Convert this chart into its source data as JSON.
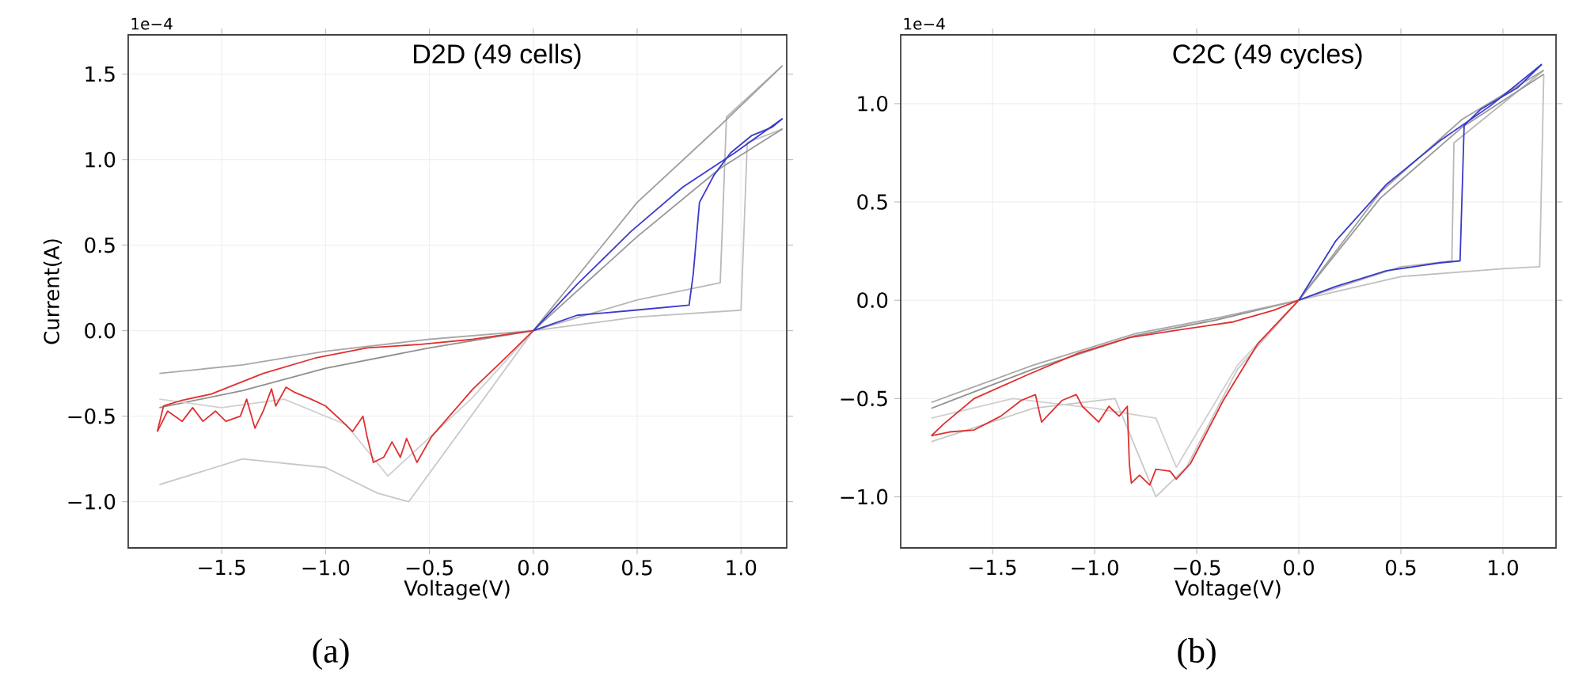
{
  "chart_data": [
    {
      "type": "line",
      "title": "D2D (49 cells)",
      "xlabel": "Voltage(V)",
      "ylabel": "Current(A)",
      "annotations": [
        "1e−4",
        "(a)"
      ],
      "xlim": [
        -1.95,
        1.22
      ],
      "ylim": [
        -1.27,
        1.73
      ],
      "xticks": [
        {
          "value": -1.5,
          "label": "−1.5"
        },
        {
          "value": -1.0,
          "label": "−1.0"
        },
        {
          "value": -0.5,
          "label": "−0.5"
        },
        {
          "value": 0,
          "label": "0.0"
        },
        {
          "value": 0.5,
          "label": "0.5"
        },
        {
          "value": 1.0,
          "label": "1.0"
        }
      ],
      "yticks": [
        {
          "value": -1.0,
          "label": "−1.0"
        },
        {
          "value": -0.5,
          "label": "−0.5"
        },
        {
          "value": 0,
          "label": "0.0"
        },
        {
          "value": 0.5,
          "label": "0.5"
        },
        {
          "value": 1.0,
          "label": "1.0"
        },
        {
          "value": 1.5,
          "label": "1.5"
        }
      ],
      "grid": true,
      "marker": "none",
      "line_style": "solid",
      "series": [
        {
          "color": "#b8b8b8",
          "x": [
            0,
            0.5,
            0.9,
            0.93,
            1.2
          ],
          "values": [
            0,
            0.18,
            0.28,
            1.25,
            1.55
          ]
        },
        {
          "color": "#a0a0a0",
          "x": [
            1.2,
            0.9,
            0.5,
            0
          ],
          "values": [
            1.55,
            1.2,
            0.75,
            0
          ]
        },
        {
          "color": "#c8c8c8",
          "x": [
            0,
            -0.3,
            -0.6,
            -0.75,
            -1.0,
            -1.4,
            -1.8
          ],
          "values": [
            0,
            -0.5,
            -1.0,
            -0.95,
            -0.8,
            -0.75,
            -0.9
          ]
        },
        {
          "color": "#909090",
          "x": [
            -1.8,
            -1.4,
            -1.0,
            -0.5,
            0
          ],
          "values": [
            -0.45,
            -0.35,
            -0.22,
            -0.1,
            0
          ]
        },
        {
          "color": "#c0c0c0",
          "x": [
            0,
            0.5,
            1.0,
            1.03,
            1.2
          ],
          "values": [
            0,
            0.08,
            0.12,
            1.1,
            1.18
          ]
        },
        {
          "color": "#989898",
          "x": [
            1.2,
            0.9,
            0.5,
            0
          ],
          "values": [
            1.18,
            0.95,
            0.55,
            0
          ]
        },
        {
          "color": "#d0d0d0",
          "x": [
            0,
            -0.3,
            -0.7,
            -0.9,
            -1.2,
            -1.5,
            -1.8
          ],
          "values": [
            0,
            -0.4,
            -0.85,
            -0.55,
            -0.4,
            -0.45,
            -0.4
          ]
        },
        {
          "color": "#a8a8a8",
          "x": [
            -1.8,
            -1.4,
            -1.0,
            -0.5,
            0
          ],
          "values": [
            -0.25,
            -0.2,
            -0.12,
            -0.05,
            0
          ]
        },
        {
          "color": "#e03030",
          "x": [
            0,
            -0.16,
            -0.29,
            -0.49,
            -0.56,
            -0.61,
            -0.64,
            -0.68,
            -0.72,
            -0.77,
            -0.8,
            -0.82,
            -0.87,
            -0.92,
            -1.0,
            -1.07,
            -1.15,
            -1.19,
            -1.24,
            -1.26,
            -1.3,
            -1.34,
            -1.38,
            -1.41,
            -1.48,
            -1.53,
            -1.59,
            -1.64,
            -1.69,
            -1.76,
            -1.81
          ],
          "values": [
            0,
            -0.19,
            -0.34,
            -0.62,
            -0.77,
            -0.63,
            -0.74,
            -0.65,
            -0.74,
            -0.77,
            -0.62,
            -0.5,
            -0.59,
            -0.53,
            -0.44,
            -0.4,
            -0.36,
            -0.33,
            -0.44,
            -0.34,
            -0.47,
            -0.57,
            -0.4,
            -0.5,
            -0.53,
            -0.47,
            -0.53,
            -0.45,
            -0.53,
            -0.47,
            -0.59
          ]
        },
        {
          "color": "#e03030",
          "x": [
            -1.81,
            -1.78,
            -1.7,
            -1.55,
            -1.3,
            -1.05,
            -0.8,
            -0.54,
            -0.29,
            0
          ],
          "values": [
            -0.59,
            -0.44,
            -0.41,
            -0.37,
            -0.25,
            -0.16,
            -0.1,
            -0.08,
            -0.05,
            0
          ]
        },
        {
          "color": "#3a3acc",
          "x": [
            0,
            0.21,
            0.49,
            0.75,
            0.77,
            0.8,
            0.87,
            0.95,
            1.05,
            1.15,
            1.2
          ],
          "values": [
            0,
            0.09,
            0.12,
            0.15,
            0.33,
            0.75,
            0.91,
            1.04,
            1.14,
            1.19,
            1.24
          ]
        },
        {
          "color": "#3a3acc",
          "x": [
            1.2,
            0.97,
            0.72,
            0.47,
            0.21,
            0
          ],
          "values": [
            1.24,
            1.04,
            0.84,
            0.58,
            0.27,
            0
          ]
        }
      ]
    },
    {
      "type": "line",
      "title": "C2C (49 cycles)",
      "xlabel": "Voltage(V)",
      "annotations": [
        "1e−4",
        "(b)"
      ],
      "xlim": [
        -1.95,
        1.26
      ],
      "ylim": [
        -1.26,
        1.35
      ],
      "xticks": [
        {
          "value": -1.5,
          "label": "−1.5"
        },
        {
          "value": -1.0,
          "label": "−1.0"
        },
        {
          "value": -0.5,
          "label": "−0.5"
        },
        {
          "value": 0,
          "label": "0.0"
        },
        {
          "value": 0.5,
          "label": "0.5"
        },
        {
          "value": 1.0,
          "label": "1.0"
        }
      ],
      "yticks": [
        {
          "value": -1.0,
          "label": "−1.0"
        },
        {
          "value": -0.5,
          "label": "−0.5"
        },
        {
          "value": 0,
          "label": "0.0"
        },
        {
          "value": 0.5,
          "label": "0.5"
        },
        {
          "value": 1.0,
          "label": "1.0"
        }
      ],
      "grid": true,
      "marker": "none",
      "line_style": "solid",
      "series": [
        {
          "color": "#b8b8b8",
          "x": [
            0,
            0.5,
            0.75,
            0.76,
            1.2
          ],
          "values": [
            0,
            0.17,
            0.2,
            0.8,
            1.17
          ]
        },
        {
          "color": "#a0a0a0",
          "x": [
            1.2,
            0.8,
            0.4,
            0
          ],
          "values": [
            1.17,
            0.92,
            0.55,
            0
          ]
        },
        {
          "color": "#c8c8c8",
          "x": [
            0,
            -0.3,
            -0.55,
            -0.7,
            -0.9,
            -1.3,
            -1.8
          ],
          "values": [
            0,
            -0.35,
            -0.85,
            -1.0,
            -0.5,
            -0.55,
            -0.72
          ]
        },
        {
          "color": "#909090",
          "x": [
            -1.8,
            -1.3,
            -0.8,
            -0.4,
            0
          ],
          "values": [
            -0.55,
            -0.35,
            -0.18,
            -0.1,
            0
          ]
        },
        {
          "color": "#c0c0c0",
          "x": [
            0,
            0.5,
            1.0,
            1.18,
            1.2
          ],
          "values": [
            0,
            0.12,
            0.16,
            0.17,
            1.15
          ]
        },
        {
          "color": "#989898",
          "x": [
            1.2,
            0.8,
            0.4,
            0
          ],
          "values": [
            1.15,
            0.88,
            0.52,
            0
          ]
        },
        {
          "color": "#d0d0d0",
          "x": [
            0,
            -0.3,
            -0.6,
            -0.7,
            -1.0,
            -1.4,
            -1.8
          ],
          "values": [
            0,
            -0.33,
            -0.85,
            -0.6,
            -0.55,
            -0.5,
            -0.6
          ]
        },
        {
          "color": "#a8a8a8",
          "x": [
            -1.8,
            -1.3,
            -0.8,
            -0.4,
            0
          ],
          "values": [
            -0.52,
            -0.33,
            -0.17,
            -0.09,
            0
          ]
        },
        {
          "color": "#e03030",
          "x": [
            0,
            -0.2,
            -0.37,
            -0.53,
            -0.6,
            -0.63,
            -0.7,
            -0.73,
            -0.78,
            -0.82,
            -0.83,
            -0.84,
            -0.88,
            -0.93,
            -0.98,
            -1.06,
            -1.09,
            -1.16,
            -1.26,
            -1.29,
            -1.36,
            -1.46,
            -1.59,
            -1.71,
            -1.8
          ],
          "values": [
            0,
            -0.22,
            -0.51,
            -0.83,
            -0.91,
            -0.87,
            -0.86,
            -0.94,
            -0.89,
            -0.93,
            -0.83,
            -0.54,
            -0.59,
            -0.54,
            -0.62,
            -0.54,
            -0.48,
            -0.51,
            -0.62,
            -0.48,
            -0.51,
            -0.59,
            -0.66,
            -0.67,
            -0.69
          ]
        },
        {
          "color": "#e03030",
          "x": [
            -1.8,
            -1.74,
            -1.59,
            -1.33,
            -1.08,
            -0.83,
            -0.58,
            -0.32,
            -0.12,
            0
          ],
          "values": [
            -0.69,
            -0.63,
            -0.5,
            -0.38,
            -0.27,
            -0.19,
            -0.15,
            -0.11,
            -0.05,
            0
          ]
        },
        {
          "color": "#3a3acc",
          "x": [
            0,
            0.18,
            0.43,
            0.69,
            0.79,
            0.81,
            0.89,
            1.07,
            1.19
          ],
          "values": [
            0,
            0.07,
            0.15,
            0.19,
            0.2,
            0.89,
            0.97,
            1.08,
            1.2
          ]
        },
        {
          "color": "#3a3acc",
          "x": [
            1.19,
            0.94,
            0.69,
            0.43,
            0.18,
            0
          ],
          "values": [
            1.2,
            0.99,
            0.81,
            0.59,
            0.3,
            0
          ]
        }
      ]
    }
  ]
}
